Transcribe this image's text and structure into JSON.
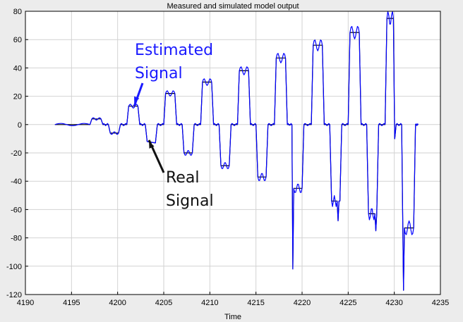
{
  "chart_data": {
    "type": "line",
    "title": "Measured and simulated model output",
    "xlabel": "Time",
    "ylabel": "",
    "xlim": [
      4190,
      4235
    ],
    "ylim": [
      -120,
      80
    ],
    "xticks": [
      4190,
      4195,
      4200,
      4205,
      4210,
      4215,
      4220,
      4225,
      4230,
      4235
    ],
    "yticks": [
      -120,
      -100,
      -80,
      -60,
      -40,
      -20,
      0,
      20,
      40,
      60,
      80
    ],
    "grid": true,
    "background": "#ffffff",
    "figure_background": "#ececec",
    "series": [
      {
        "key": "real",
        "color": "#000000",
        "points": [
          [
            4193.2,
            0
          ],
          [
            4197.0,
            0
          ],
          [
            4197.2,
            4
          ],
          [
            4198.2,
            4
          ],
          [
            4198.4,
            0
          ],
          [
            4199.0,
            0
          ],
          [
            4199.2,
            -6
          ],
          [
            4200.1,
            -6
          ],
          [
            4200.3,
            0
          ],
          [
            4201.0,
            0
          ],
          [
            4201.2,
            13
          ],
          [
            4202.2,
            13
          ],
          [
            4202.4,
            0
          ],
          [
            4203.0,
            0
          ],
          [
            4203.2,
            -12
          ],
          [
            4204.1,
            -13
          ],
          [
            4204.3,
            0
          ],
          [
            4205.0,
            0
          ],
          [
            4205.2,
            22
          ],
          [
            4206.2,
            22
          ],
          [
            4206.4,
            0
          ],
          [
            4207.0,
            0
          ],
          [
            4207.2,
            -20
          ],
          [
            4208.1,
            -20
          ],
          [
            4208.3,
            0
          ],
          [
            4209.0,
            0
          ],
          [
            4209.2,
            30
          ],
          [
            4210.2,
            30
          ],
          [
            4210.4,
            0
          ],
          [
            4211.0,
            0
          ],
          [
            4211.2,
            -29
          ],
          [
            4212.1,
            -29
          ],
          [
            4212.3,
            0
          ],
          [
            4213.0,
            0
          ],
          [
            4213.2,
            38
          ],
          [
            4214.2,
            38
          ],
          [
            4214.4,
            0
          ],
          [
            4215.0,
            0
          ],
          [
            4215.2,
            -37
          ],
          [
            4216.1,
            -37
          ],
          [
            4216.3,
            0
          ],
          [
            4217.0,
            0
          ],
          [
            4217.2,
            47
          ],
          [
            4218.2,
            47
          ],
          [
            4218.4,
            0
          ],
          [
            4218.9,
            0
          ],
          [
            4219.0,
            -102
          ],
          [
            4219.1,
            -45
          ],
          [
            4220.0,
            -45
          ],
          [
            4220.2,
            0
          ],
          [
            4221.0,
            0
          ],
          [
            4221.2,
            56
          ],
          [
            4222.2,
            56
          ],
          [
            4222.4,
            0
          ],
          [
            4223.0,
            0
          ],
          [
            4223.2,
            -54
          ],
          [
            4223.8,
            -54
          ],
          [
            4223.9,
            -68
          ],
          [
            4224.0,
            -54
          ],
          [
            4224.1,
            -54
          ],
          [
            4224.3,
            0
          ],
          [
            4225.0,
            0
          ],
          [
            4225.2,
            65
          ],
          [
            4226.2,
            65
          ],
          [
            4226.4,
            0
          ],
          [
            4227.0,
            0
          ],
          [
            4227.2,
            -63
          ],
          [
            4227.9,
            -63
          ],
          [
            4228.0,
            -75
          ],
          [
            4228.1,
            -63
          ],
          [
            4228.3,
            0
          ],
          [
            4229.0,
            0
          ],
          [
            4229.2,
            75
          ],
          [
            4229.9,
            75
          ],
          [
            4230.0,
            13
          ],
          [
            4230.05,
            -10
          ],
          [
            4230.2,
            0
          ],
          [
            4230.8,
            0
          ],
          [
            4231.0,
            -117
          ],
          [
            4231.1,
            -73
          ],
          [
            4232.1,
            -73
          ],
          [
            4232.3,
            0
          ],
          [
            4232.6,
            0
          ]
        ]
      },
      {
        "key": "estimated",
        "color": "#0000ff",
        "points": []
      }
    ],
    "annotations": [
      {
        "lines": [
          "Estimated",
          "Signal"
        ],
        "color": "#1a1aff",
        "target": [
          4201.8,
          15
        ]
      },
      {
        "lines": [
          "Real",
          "Signal"
        ],
        "color": "#111111",
        "target": [
          4203.4,
          -12
        ]
      }
    ]
  }
}
